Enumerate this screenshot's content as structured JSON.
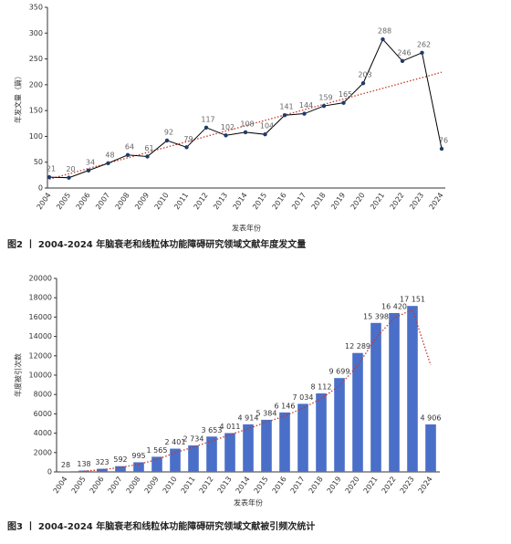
{
  "chart_data": [
    {
      "type": "line",
      "caption": "图2 丨 2004-2024 年脑衰老和线粒体功能障碍研究领域文献年度发文量",
      "x_label": "发表年份",
      "y_label": "年发文量（篇）",
      "categories": [
        "2004",
        "2005",
        "2006",
        "2007",
        "2008",
        "2009",
        "2010",
        "2011",
        "2012",
        "2013",
        "2014",
        "2015",
        "2016",
        "2017",
        "2018",
        "2019",
        "2020",
        "2021",
        "2022",
        "2023",
        "2024"
      ],
      "values": [
        21,
        20,
        34,
        48,
        64,
        61,
        92,
        79,
        117,
        102,
        108,
        104,
        141,
        144,
        159,
        165,
        203,
        288,
        246,
        262,
        76
      ],
      "color": "#000000",
      "marker_color": "#1f3a6e",
      "trend_color": "#c0392b",
      "trendline": "linear",
      "ylim": [
        0,
        350
      ],
      "yticks": [
        0,
        50,
        100,
        150,
        200,
        250,
        300,
        350
      ]
    },
    {
      "type": "bar",
      "caption": "图3 丨 2004-2024 年脑衰老和线粒体功能障碍研究领域文献被引频次统计",
      "x_label": "发表年份",
      "y_label": "年度被引次数",
      "categories": [
        "2004",
        "2005",
        "2006",
        "2007",
        "2008",
        "2009",
        "2010",
        "2011",
        "2012",
        "2013",
        "2014",
        "2015",
        "2016",
        "2017",
        "2018",
        "2019",
        "2020",
        "2021",
        "2022",
        "2023",
        "2024"
      ],
      "values": [
        28,
        138,
        323,
        592,
        995,
        1565,
        2401,
        2734,
        3653,
        4011,
        4914,
        5384,
        6146,
        7034,
        8112,
        9699,
        12289,
        15398,
        16420,
        17151,
        4906
      ],
      "value_labels": [
        "28",
        "138",
        "323",
        "592",
        "995",
        "1 565",
        "2 401",
        "2 734",
        "3 653",
        "4 011",
        "4 914",
        "5 384",
        "6 146",
        "7 034",
        "8 112",
        "9 699",
        "12 289",
        "15 398",
        "16 420",
        "17 151",
        "4 906"
      ],
      "color": "#4a6fc9",
      "trend_color": "#c0392b",
      "trendline": "moving-average",
      "trend_period": 2,
      "ylim": [
        0,
        20000
      ],
      "yticks": [
        0,
        2000,
        4000,
        6000,
        8000,
        10000,
        12000,
        14000,
        16000,
        18000,
        20000
      ]
    }
  ]
}
